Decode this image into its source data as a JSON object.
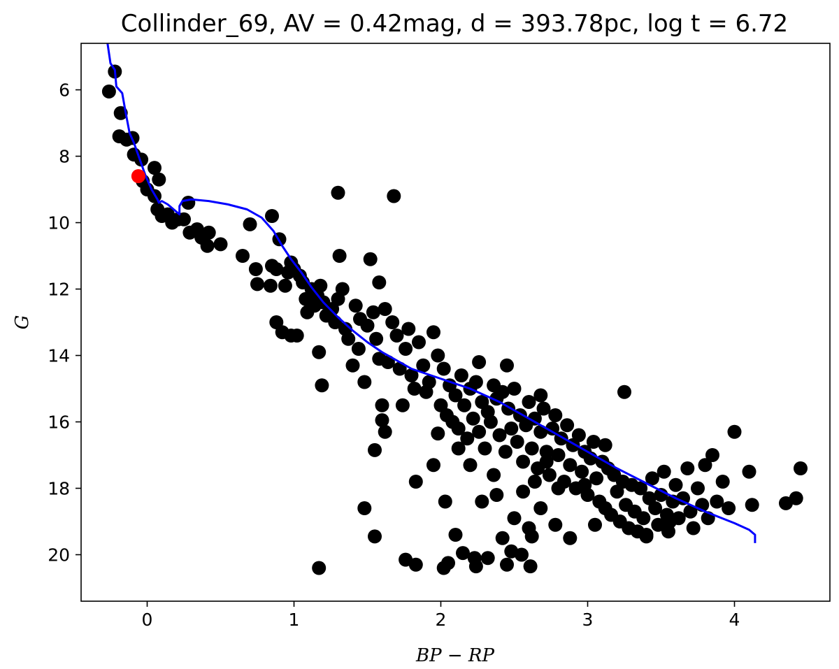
{
  "chart_data": {
    "type": "scatter",
    "title": "Collinder_69, AV = 0.42mag, d = 393.78pc, log t = 6.72",
    "xlabel": "BP − RP",
    "ylabel": "G",
    "xlim": [
      -0.45,
      4.65
    ],
    "ylim": [
      21.4,
      4.6
    ],
    "y_inverted": true,
    "grid": false,
    "x_ticks": [
      0,
      1,
      2,
      3,
      4
    ],
    "y_ticks": [
      6,
      8,
      10,
      12,
      14,
      16,
      18,
      20
    ],
    "colors": {
      "members": "#000000",
      "highlight": "#ff0000",
      "isochrone": "#0000ff"
    },
    "series": [
      {
        "kind": "points",
        "color": "#000000",
        "points": [
          [
            -0.22,
            5.45
          ],
          [
            -0.26,
            6.05
          ],
          [
            -0.18,
            6.7
          ],
          [
            -0.19,
            7.4
          ],
          [
            -0.14,
            7.5
          ],
          [
            -0.1,
            7.45
          ],
          [
            -0.09,
            7.95
          ],
          [
            -0.04,
            8.1
          ],
          [
            0.05,
            8.35
          ],
          [
            0.08,
            8.7
          ],
          [
            -0.03,
            8.75
          ],
          [
            0.0,
            9.0
          ],
          [
            0.05,
            9.2
          ],
          [
            0.07,
            9.6
          ],
          [
            0.1,
            9.8
          ],
          [
            0.14,
            9.75
          ],
          [
            0.17,
            10.0
          ],
          [
            0.21,
            9.9
          ],
          [
            0.25,
            9.9
          ],
          [
            0.28,
            9.4
          ],
          [
            0.29,
            10.3
          ],
          [
            0.34,
            10.2
          ],
          [
            0.37,
            10.45
          ],
          [
            0.42,
            10.3
          ],
          [
            0.41,
            10.7
          ],
          [
            0.5,
            10.65
          ],
          [
            0.65,
            11.0
          ],
          [
            0.7,
            10.05
          ],
          [
            0.74,
            11.4
          ],
          [
            0.75,
            11.85
          ],
          [
            0.85,
            9.8
          ],
          [
            0.85,
            11.3
          ],
          [
            0.84,
            11.9
          ],
          [
            0.88,
            11.4
          ],
          [
            0.9,
            10.5
          ],
          [
            0.94,
            11.9
          ],
          [
            0.88,
            13.0
          ],
          [
            0.92,
            13.3
          ],
          [
            0.96,
            11.5
          ],
          [
            0.98,
            11.2
          ],
          [
            1.0,
            11.4
          ],
          [
            0.98,
            13.4
          ],
          [
            1.02,
            13.4
          ],
          [
            1.04,
            11.6
          ],
          [
            1.06,
            11.8
          ],
          [
            1.08,
            12.3
          ],
          [
            1.09,
            12.7
          ],
          [
            1.12,
            12.0
          ],
          [
            1.14,
            12.5
          ],
          [
            1.16,
            12.2
          ],
          [
            1.18,
            11.9
          ],
          [
            1.17,
            13.9
          ],
          [
            1.2,
            12.4
          ],
          [
            1.22,
            12.8
          ],
          [
            1.19,
            14.9
          ],
          [
            1.26,
            12.6
          ],
          [
            1.28,
            13.0
          ],
          [
            1.3,
            12.3
          ],
          [
            1.3,
            9.1
          ],
          [
            1.31,
            11.0
          ],
          [
            1.33,
            12.0
          ],
          [
            1.35,
            13.2
          ],
          [
            1.37,
            13.5
          ],
          [
            1.4,
            14.3
          ],
          [
            1.42,
            12.5
          ],
          [
            1.44,
            13.8
          ],
          [
            1.45,
            12.9
          ],
          [
            1.48,
            14.8
          ],
          [
            1.5,
            13.1
          ],
          [
            1.52,
            11.1
          ],
          [
            1.54,
            12.7
          ],
          [
            1.56,
            13.5
          ],
          [
            1.58,
            14.1
          ],
          [
            1.6,
            15.5
          ],
          [
            1.58,
            11.8
          ],
          [
            1.62,
            12.6
          ],
          [
            1.64,
            14.2
          ],
          [
            1.67,
            13.0
          ],
          [
            1.68,
            9.2
          ],
          [
            1.7,
            13.4
          ],
          [
            1.72,
            14.4
          ],
          [
            1.74,
            15.5
          ],
          [
            1.76,
            13.8
          ],
          [
            1.78,
            13.2
          ],
          [
            1.8,
            14.6
          ],
          [
            1.82,
            15.0
          ],
          [
            1.85,
            13.6
          ],
          [
            1.88,
            14.3
          ],
          [
            1.9,
            15.1
          ],
          [
            1.92,
            14.8
          ],
          [
            1.95,
            13.3
          ],
          [
            1.98,
            14.0
          ],
          [
            2.0,
            15.5
          ],
          [
            2.02,
            14.4
          ],
          [
            2.04,
            15.8
          ],
          [
            2.06,
            14.9
          ],
          [
            2.08,
            16.0
          ],
          [
            2.1,
            15.2
          ],
          [
            2.12,
            16.2
          ],
          [
            2.14,
            14.6
          ],
          [
            2.16,
            15.5
          ],
          [
            2.18,
            16.5
          ],
          [
            2.2,
            15.0
          ],
          [
            2.22,
            15.9
          ],
          [
            2.24,
            14.8
          ],
          [
            2.26,
            16.3
          ],
          [
            2.28,
            15.4
          ],
          [
            2.3,
            16.8
          ],
          [
            2.32,
            15.7
          ],
          [
            2.34,
            16.0
          ],
          [
            2.36,
            14.9
          ],
          [
            2.38,
            15.3
          ],
          [
            2.4,
            16.4
          ],
          [
            2.42,
            15.1
          ],
          [
            2.44,
            16.9
          ],
          [
            2.46,
            15.6
          ],
          [
            2.48,
            16.2
          ],
          [
            2.5,
            15.0
          ],
          [
            2.52,
            16.6
          ],
          [
            2.54,
            15.8
          ],
          [
            2.56,
            17.2
          ],
          [
            2.58,
            16.1
          ],
          [
            2.6,
            15.4
          ],
          [
            2.62,
            16.8
          ],
          [
            2.64,
            15.9
          ],
          [
            2.66,
            17.4
          ],
          [
            2.68,
            16.3
          ],
          [
            2.7,
            15.6
          ],
          [
            2.72,
            16.9
          ],
          [
            2.74,
            17.6
          ],
          [
            2.76,
            16.2
          ],
          [
            2.78,
            15.8
          ],
          [
            2.8,
            17.0
          ],
          [
            2.82,
            16.5
          ],
          [
            2.84,
            17.8
          ],
          [
            2.86,
            16.1
          ],
          [
            2.88,
            17.3
          ],
          [
            2.9,
            16.7
          ],
          [
            2.92,
            18.0
          ],
          [
            2.94,
            16.4
          ],
          [
            2.96,
            17.5
          ],
          [
            2.98,
            16.9
          ],
          [
            3.0,
            18.2
          ],
          [
            3.02,
            17.1
          ],
          [
            3.04,
            16.6
          ],
          [
            3.06,
            17.7
          ],
          [
            3.08,
            18.4
          ],
          [
            3.1,
            17.2
          ],
          [
            3.12,
            18.6
          ],
          [
            3.14,
            17.4
          ],
          [
            3.16,
            18.8
          ],
          [
            3.18,
            17.6
          ],
          [
            3.2,
            18.1
          ],
          [
            3.22,
            19.0
          ],
          [
            3.24,
            17.8
          ],
          [
            3.26,
            18.5
          ],
          [
            3.28,
            19.2
          ],
          [
            3.3,
            17.9
          ],
          [
            3.32,
            18.7
          ],
          [
            3.34,
            19.3
          ],
          [
            3.36,
            18.0
          ],
          [
            3.38,
            18.9
          ],
          [
            3.4,
            19.4
          ],
          [
            3.42,
            18.3
          ],
          [
            3.44,
            17.7
          ],
          [
            3.46,
            18.6
          ],
          [
            3.48,
            19.1
          ],
          [
            3.5,
            18.2
          ],
          [
            3.52,
            17.5
          ],
          [
            3.54,
            18.8
          ],
          [
            3.56,
            19.0
          ],
          [
            3.58,
            18.4
          ],
          [
            3.6,
            17.9
          ],
          [
            3.62,
            18.9
          ],
          [
            3.65,
            18.3
          ],
          [
            3.68,
            17.4
          ],
          [
            3.7,
            18.7
          ],
          [
            3.72,
            19.2
          ],
          [
            3.75,
            18.0
          ],
          [
            3.78,
            18.5
          ],
          [
            3.8,
            17.3
          ],
          [
            3.82,
            18.9
          ],
          [
            3.85,
            17.0
          ],
          [
            3.88,
            18.4
          ],
          [
            3.92,
            17.8
          ],
          [
            3.96,
            18.6
          ],
          [
            4.0,
            16.3
          ],
          [
            4.1,
            17.5
          ],
          [
            4.12,
            18.5
          ],
          [
            4.35,
            18.45
          ],
          [
            4.42,
            18.3
          ],
          [
            4.45,
            17.4
          ],
          [
            1.48,
            18.6
          ],
          [
            1.55,
            16.85
          ],
          [
            1.55,
            19.45
          ],
          [
            1.17,
            20.4
          ],
          [
            1.76,
            20.15
          ],
          [
            1.83,
            20.3
          ],
          [
            1.83,
            17.8
          ],
          [
            1.95,
            17.3
          ],
          [
            1.98,
            16.35
          ],
          [
            2.02,
            20.4
          ],
          [
            2.03,
            18.4
          ],
          [
            2.05,
            20.25
          ],
          [
            2.1,
            19.4
          ],
          [
            2.12,
            16.8
          ],
          [
            2.15,
            19.95
          ],
          [
            2.2,
            17.3
          ],
          [
            2.23,
            20.1
          ],
          [
            2.24,
            20.35
          ],
          [
            2.28,
            18.4
          ],
          [
            2.32,
            20.1
          ],
          [
            2.36,
            17.6
          ],
          [
            2.38,
            18.2
          ],
          [
            2.42,
            19.5
          ],
          [
            2.45,
            20.3
          ],
          [
            2.48,
            19.9
          ],
          [
            2.5,
            18.9
          ],
          [
            2.55,
            20.0
          ],
          [
            2.56,
            18.1
          ],
          [
            2.6,
            19.2
          ],
          [
            2.61,
            20.35
          ],
          [
            2.62,
            19.45
          ],
          [
            2.64,
            17.8
          ],
          [
            2.68,
            18.6
          ],
          [
            2.72,
            17.2
          ],
          [
            2.78,
            19.1
          ],
          [
            2.8,
            18.0
          ],
          [
            2.88,
            19.5
          ],
          [
            2.98,
            17.9
          ],
          [
            3.05,
            19.1
          ],
          [
            3.25,
            15.1
          ],
          [
            3.4,
            19.45
          ],
          [
            3.55,
            19.3
          ],
          [
            1.6,
            15.95
          ],
          [
            1.62,
            16.3
          ],
          [
            2.45,
            14.3
          ],
          [
            2.68,
            15.2
          ],
          [
            3.12,
            16.7
          ],
          [
            2.26,
            14.2
          ]
        ]
      },
      {
        "kind": "highlight",
        "color": "#ff0000",
        "points": [
          [
            -0.06,
            8.6
          ]
        ]
      },
      {
        "kind": "line",
        "color": "#0000ff",
        "points": [
          [
            -0.27,
            4.6
          ],
          [
            -0.25,
            5.2
          ],
          [
            -0.22,
            5.4
          ],
          [
            -0.21,
            5.9
          ],
          [
            -0.17,
            6.1
          ],
          [
            -0.15,
            6.6
          ],
          [
            -0.12,
            7.3
          ],
          [
            -0.09,
            7.6
          ],
          [
            -0.05,
            8.1
          ],
          [
            -0.01,
            8.6
          ],
          [
            0.03,
            9.0
          ],
          [
            0.07,
            9.3
          ],
          [
            0.08,
            9.4
          ],
          [
            0.1,
            9.35
          ],
          [
            0.14,
            9.45
          ],
          [
            0.18,
            9.6
          ],
          [
            0.22,
            9.75
          ],
          [
            0.22,
            9.5
          ],
          [
            0.24,
            9.35
          ],
          [
            0.3,
            9.3
          ],
          [
            0.42,
            9.35
          ],
          [
            0.55,
            9.45
          ],
          [
            0.68,
            9.6
          ],
          [
            0.78,
            9.85
          ],
          [
            0.86,
            10.25
          ],
          [
            0.92,
            10.7
          ],
          [
            0.98,
            11.1
          ],
          [
            1.05,
            11.5
          ],
          [
            1.12,
            11.95
          ],
          [
            1.2,
            12.4
          ],
          [
            1.3,
            12.85
          ],
          [
            1.4,
            13.25
          ],
          [
            1.5,
            13.6
          ],
          [
            1.6,
            13.9
          ],
          [
            1.7,
            14.15
          ],
          [
            1.8,
            14.4
          ],
          [
            2.0,
            14.7
          ],
          [
            2.2,
            15.0
          ],
          [
            2.4,
            15.4
          ],
          [
            2.6,
            15.9
          ],
          [
            2.8,
            16.4
          ],
          [
            3.0,
            16.9
          ],
          [
            3.2,
            17.4
          ],
          [
            3.4,
            17.85
          ],
          [
            3.6,
            18.3
          ],
          [
            3.8,
            18.7
          ],
          [
            4.0,
            19.05
          ],
          [
            4.1,
            19.25
          ],
          [
            4.14,
            19.4
          ],
          [
            4.14,
            19.65
          ]
        ]
      }
    ]
  }
}
